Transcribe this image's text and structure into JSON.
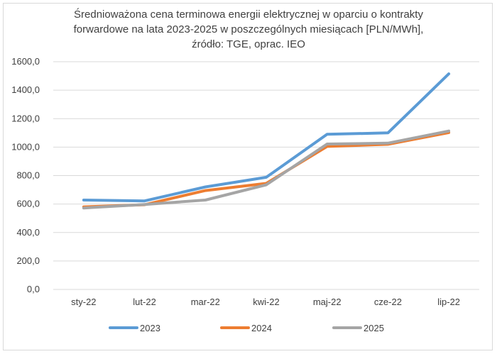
{
  "chart_data": {
    "type": "line",
    "title_lines": [
      "Średnioważona cena terminowa energii elektrycznej w oparciu o kontrakty",
      "forwardowe na lata 2023-2025 w poszczególnych miesiącach [PLN/MWh],",
      "źródło: TGE, oprac. IEO"
    ],
    "categories": [
      "sty-22",
      "lut-22",
      "mar-22",
      "kwi-22",
      "maj-22",
      "cze-22",
      "lip-22"
    ],
    "series": [
      {
        "name": "2023",
        "color": "#5b9bd5",
        "values": [
          628,
          622,
          720,
          788,
          1090,
          1100,
          1515
        ]
      },
      {
        "name": "2024",
        "color": "#ed7d31",
        "values": [
          580,
          595,
          695,
          745,
          1005,
          1020,
          1102
        ]
      },
      {
        "name": "2025",
        "color": "#a5a5a5",
        "values": [
          572,
          597,
          628,
          735,
          1022,
          1028,
          1113
        ]
      }
    ],
    "ylim": [
      0,
      1600
    ],
    "yticks": [
      "0,0",
      "200,0",
      "400,0",
      "600,0",
      "800,0",
      "1000,0",
      "1200,0",
      "1400,0",
      "1600,0"
    ],
    "grid": true,
    "legend_position": "bottom"
  }
}
